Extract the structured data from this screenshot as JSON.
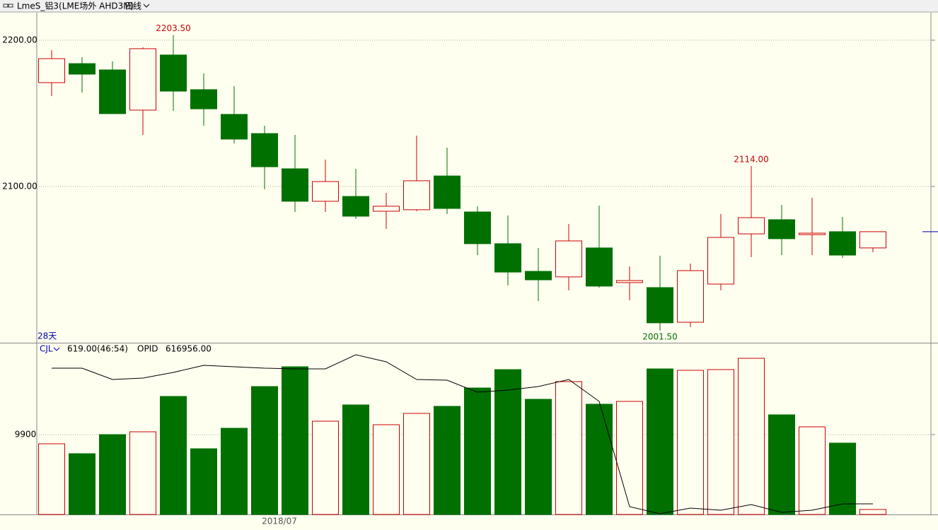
{
  "chart_data": {
    "type": "candlestick",
    "title": "LmeS_铝3(LME场外 AHD3M)",
    "period": "日线",
    "period_count": "28天",
    "categories": [
      null,
      null,
      null,
      null,
      null,
      null,
      null,
      null,
      "2018/07",
      null,
      null,
      null,
      null,
      null,
      null,
      null,
      null,
      null,
      null,
      null,
      null,
      null,
      null,
      null,
      null,
      null,
      null,
      null
    ],
    "open": [
      2171.0,
      2184.0,
      2179.7,
      2152.2,
      2189.9,
      2166.2,
      2149.3,
      2136.2,
      2112.1,
      2089.9,
      2093.2,
      2083.1,
      2084.1,
      2107.2,
      2082.6,
      2060.9,
      2042.0,
      2038.2,
      2058.0,
      2034.3,
      2030.9,
      2007.2,
      2033.3,
      2067.6,
      2077.3,
      2067.1,
      2069.1,
      2058.0
    ],
    "high": [
      2193.2,
      2188.4,
      2185.5,
      2195.2,
      2203.5,
      2177.3,
      2168.6,
      2141.5,
      2135.3,
      2118.4,
      2112.1,
      2095.7,
      2134.8,
      2126.6,
      2086.5,
      2080.2,
      2058.0,
      2074.4,
      2087.0,
      2045.4,
      2052.7,
      2047.3,
      2081.2,
      2114.0,
      2087.4,
      2092.3,
      2079.2,
      2069.1
    ],
    "low": [
      2161.8,
      2164.3,
      2149.8,
      2135.3,
      2151.7,
      2141.5,
      2129.5,
      2098.1,
      2082.6,
      2082.6,
      2077.8,
      2071.0,
      2083.1,
      2081.2,
      2053.1,
      2032.4,
      2021.7,
      2029.0,
      2030.9,
      2022.2,
      2001.5,
      2003.9,
      2029.0,
      2051.7,
      2053.1,
      2053.1,
      2051.2,
      2055.1
    ],
    "close": [
      2187.4,
      2176.8,
      2149.8,
      2194.2,
      2165.2,
      2153.1,
      2132.4,
      2113.5,
      2089.9,
      2103.4,
      2079.7,
      2086.5,
      2103.9,
      2085.0,
      2060.9,
      2041.5,
      2036.2,
      2062.8,
      2031.9,
      2035.7,
      2006.8,
      2042.5,
      2065.2,
      2078.7,
      2064.3,
      2068.1,
      2053.1,
      2069.1
    ],
    "ylim": [
      1993.2,
      2218.8
    ],
    "yticks": [
      {
        "value": 2100,
        "label": "2100.00"
      },
      {
        "value": 2200,
        "label": "2200.00"
      }
    ],
    "grid": true,
    "up_color": "#cc0000",
    "down_color": "#007000",
    "annotations": [
      "2203.50",
      "2114.00",
      "2001.50"
    ],
    "volume": {
      "name": "CJL",
      "readout": "619.00(46:54)",
      "values": [
        8761,
        7534,
        9900,
        10250,
        14631,
        8148,
        10688,
        15857,
        18310,
        11564,
        13579,
        11126,
        12528,
        13404,
        15681,
        17960,
        14280,
        16470,
        13667,
        14017,
        18047,
        17872,
        17960,
        19361,
        12353,
        10863,
        8848,
        619
      ],
      "ylim": [
        0,
        21027
      ],
      "yticks": [
        9900
      ]
    },
    "open_interest": {
      "name": "OPID",
      "readout": "616956.00",
      "color": "#000000",
      "values": [
        1000956,
        1000956,
        968956,
        972956,
        988956,
        1008956,
        1004956,
        1000956,
        998956,
        998956,
        1038956,
        1018956,
        968956,
        966956,
        932956,
        938956,
        948956,
        968956,
        906956,
        608956,
        588956,
        604956,
        598956,
        614956,
        592956,
        598956,
        616956,
        616956
      ],
      "y2lim": [
        586956,
        1066956
      ]
    }
  }
}
